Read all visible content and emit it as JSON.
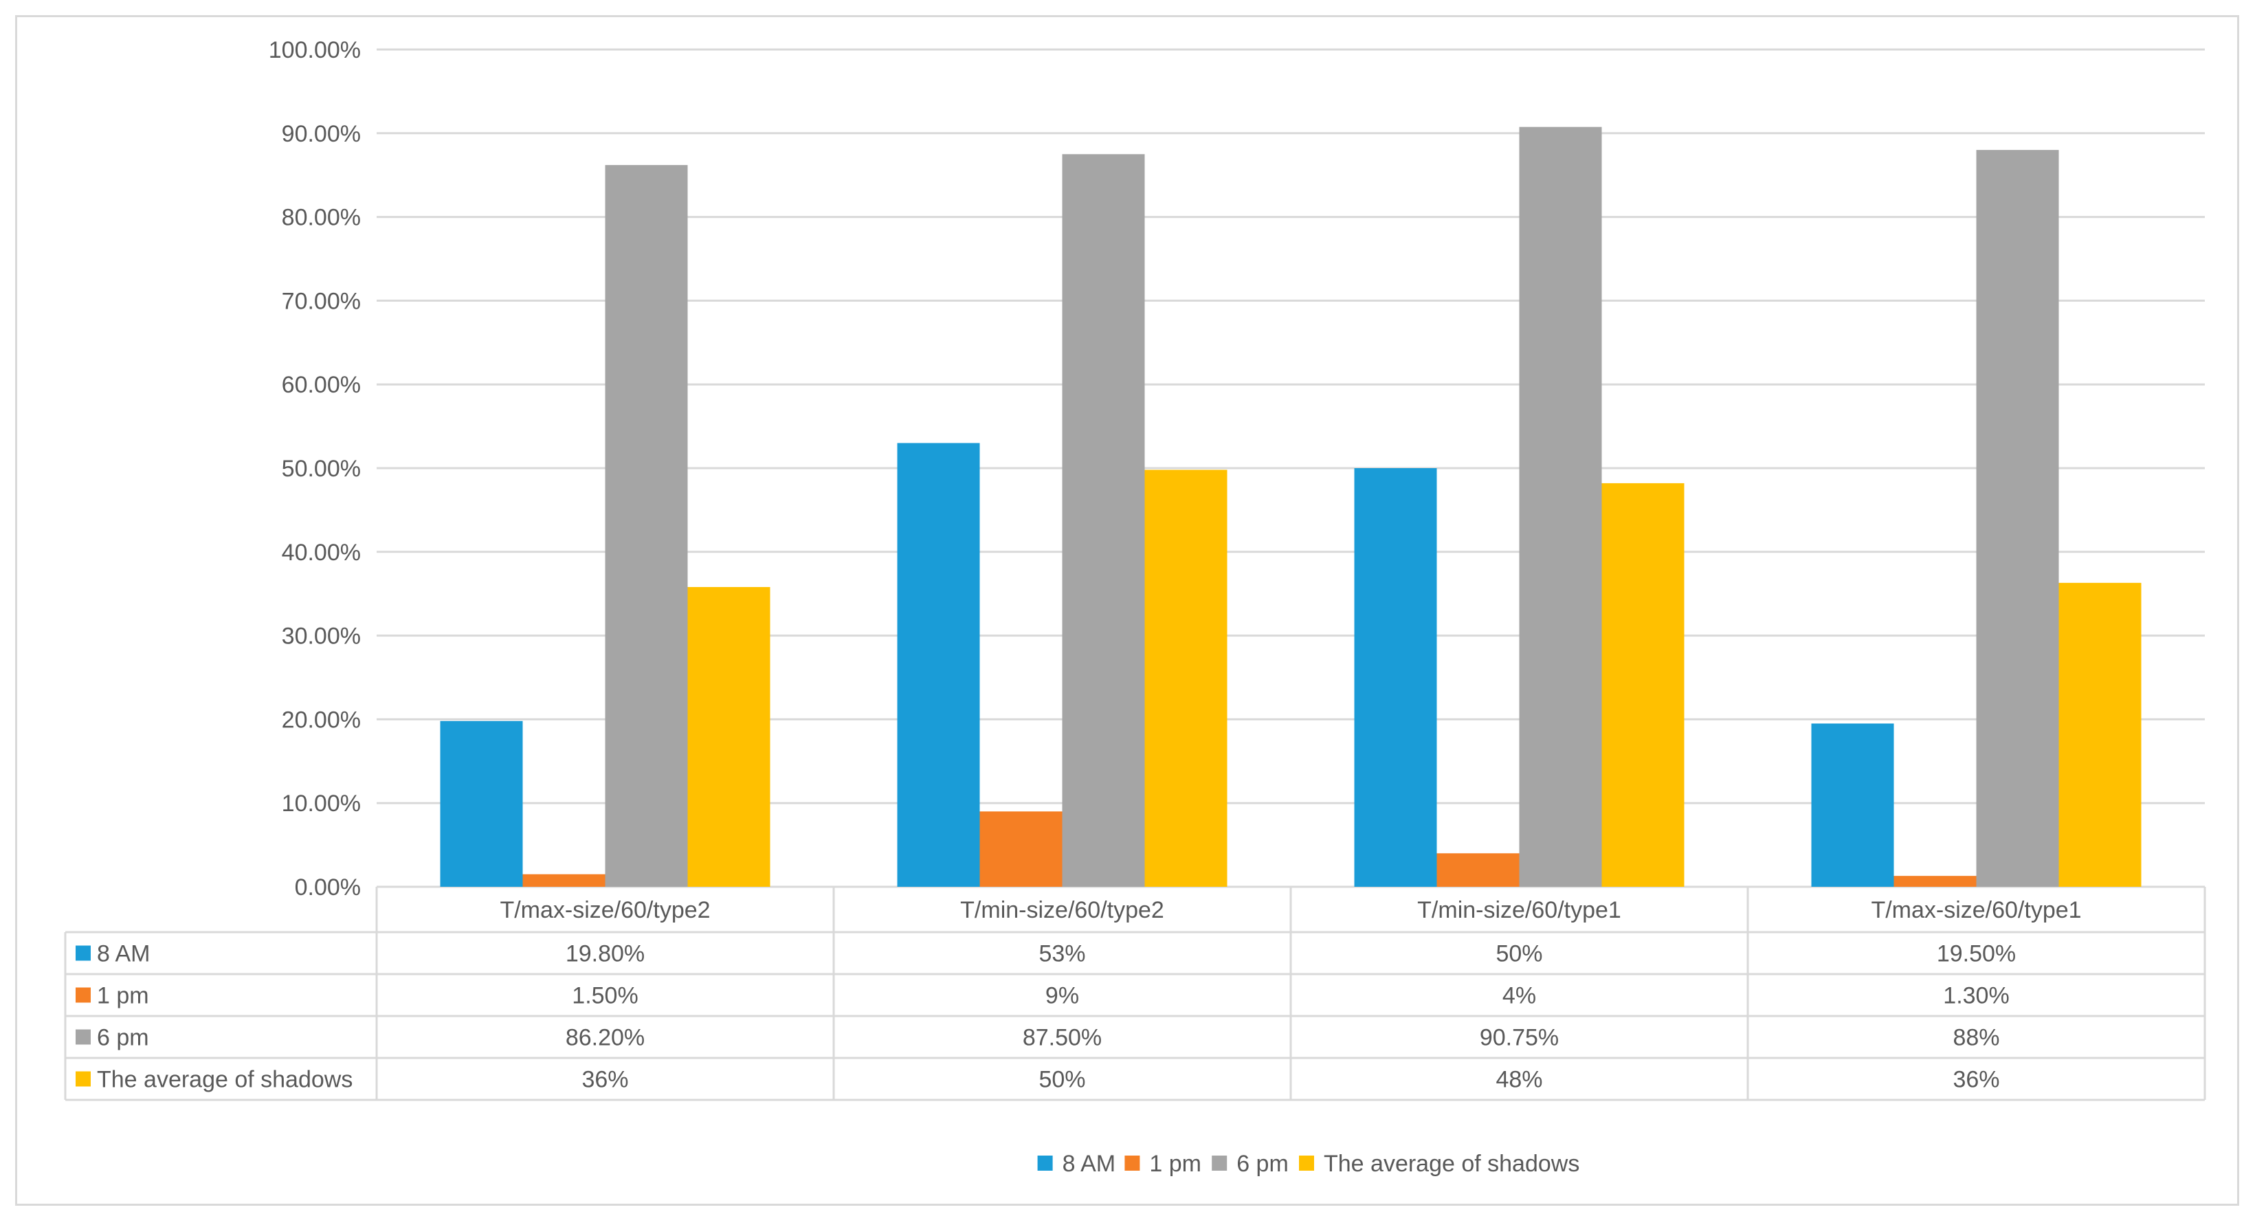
{
  "colors": {
    "grid": "#d9d9d9",
    "text": "#595959",
    "frame": "#d9d9d9"
  },
  "chart_data": {
    "type": "bar",
    "title": "",
    "xlabel": "",
    "ylabel": "",
    "ylim": [
      0,
      100
    ],
    "y_ticks": [
      "0.00%",
      "10.00%",
      "20.00%",
      "30.00%",
      "40.00%",
      "50.00%",
      "60.00%",
      "70.00%",
      "80.00%",
      "90.00%",
      "100.00%"
    ],
    "categories": [
      "T/max-size/60/type2",
      "T/min-size/60/type2",
      "T/min-size/60/type1",
      "T/max-size/60/type1"
    ],
    "legend_position": "bottom",
    "series": [
      {
        "name": "8 AM",
        "color": "#1a9cd7",
        "values": [
          19.8,
          53,
          50,
          19.5
        ],
        "table_labels": [
          "19.80%",
          "53%",
          "50%",
          "19.50%"
        ]
      },
      {
        "name": "1 pm",
        "color": "#f57f24",
        "values": [
          1.5,
          9,
          4,
          1.3
        ],
        "table_labels": [
          "1.50%",
          "9%",
          "4%",
          "1.30%"
        ]
      },
      {
        "name": "6 pm",
        "color": "#a5a5a5",
        "values": [
          86.2,
          87.5,
          90.75,
          88
        ],
        "table_labels": [
          "86.20%",
          "87.50%",
          "90.75%",
          "88%"
        ]
      },
      {
        "name": "The average of shadows",
        "color": "#ffc000",
        "values": [
          35.8,
          49.8,
          48.2,
          36.3
        ],
        "table_labels": [
          "36%",
          "50%",
          "48%",
          "36%"
        ]
      }
    ]
  }
}
